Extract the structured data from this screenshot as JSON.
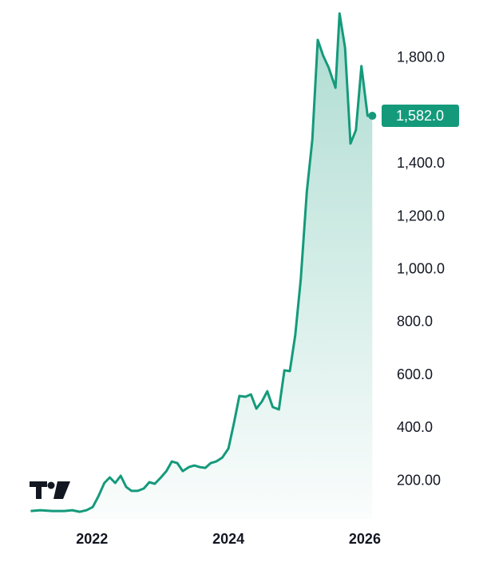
{
  "chart_data": {
    "type": "line",
    "x": [
      2021.1,
      2021.24,
      2021.42,
      2021.59,
      2021.71,
      2021.82,
      2021.92,
      2022.01,
      2022.09,
      2022.18,
      2022.26,
      2022.34,
      2022.42,
      2022.5,
      2022.58,
      2022.67,
      2022.76,
      2022.84,
      2022.92,
      2023.01,
      2023.09,
      2023.17,
      2023.25,
      2023.33,
      2023.42,
      2023.5,
      2023.58,
      2023.66,
      2023.74,
      2023.82,
      2023.91,
      2024.0,
      2024.08,
      2024.16,
      2024.25,
      2024.33,
      2024.41,
      2024.49,
      2024.57,
      2024.65,
      2024.74,
      2024.82,
      2024.9,
      2024.98,
      2025.06,
      2025.15,
      2025.23,
      2025.31,
      2025.39,
      2025.47,
      2025.57,
      2025.63,
      2025.71,
      2025.79,
      2025.87,
      2025.95,
      2026.04,
      2026.11
    ],
    "series": [
      {
        "color": "#149a7b",
        "values": [
          87,
          90,
          87,
          87,
          90,
          84,
          90,
          102,
          141,
          193,
          214,
          193,
          220,
          178,
          163,
          163,
          172,
          196,
          190,
          214,
          238,
          274,
          268,
          238,
          253,
          259,
          253,
          250,
          268,
          274,
          289,
          323,
          419,
          522,
          519,
          528,
          474,
          501,
          540,
          480,
          471,
          619,
          616,
          752,
          963,
          1295,
          1492,
          1869,
          1809,
          1764,
          1688,
          1969,
          1839,
          1477,
          1528,
          1770,
          1582,
          1582
        ],
        "value_labels": [
          null,
          null,
          null,
          null,
          null,
          null,
          null,
          null,
          null,
          null,
          null,
          null,
          null,
          null,
          null,
          null,
          null,
          null,
          null,
          null,
          null,
          null,
          null,
          null,
          null,
          null,
          null,
          null,
          null,
          null,
          null,
          null,
          null,
          null,
          null,
          null,
          null,
          null,
          null,
          null,
          null,
          null,
          null,
          null,
          null,
          null,
          null,
          null,
          null,
          null,
          null,
          null,
          null,
          null,
          null,
          null,
          null,
          "1,582.0"
        ]
      }
    ],
    "xlim": [
      2020.65,
      2026.27
    ],
    "xticks": [
      2022,
      2024,
      2026
    ],
    "ylim": [
      57,
      2020
    ],
    "yticks": [
      {
        "value": 200,
        "label": "200.00"
      },
      {
        "value": 400,
        "label": "400.0"
      },
      {
        "value": 600,
        "label": "600.0"
      },
      {
        "value": 800,
        "label": "800.0"
      },
      {
        "value": 1000,
        "label": "1,000.0"
      },
      {
        "value": 1200,
        "label": "1,200.0"
      },
      {
        "value": 1400,
        "label": "1,400.0"
      },
      {
        "value": 1600,
        "label": "1,600.0"
      },
      {
        "value": 1800,
        "label": "1,800.0"
      }
    ],
    "grid": false
  }
}
